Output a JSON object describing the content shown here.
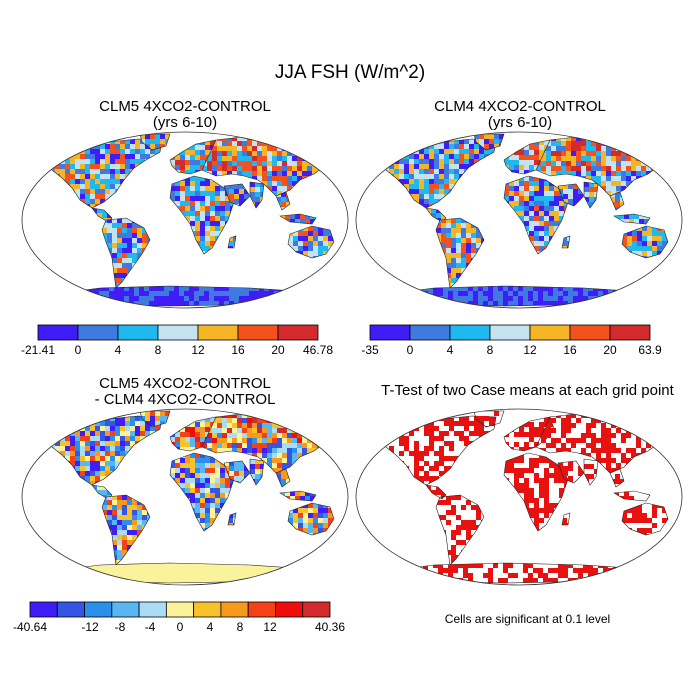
{
  "chart_data": [
    {
      "type": "heatmap",
      "panel": "clm5",
      "title_line1": "CLM5 4XCO2-CONTROL",
      "title_line2": "(yrs 6-10)",
      "colorbar": {
        "labels": [
          "-21.41",
          "0",
          "4",
          "8",
          "12",
          "16",
          "20",
          "46.78"
        ],
        "colors": [
          "#3f1df7",
          "#3f7ae0",
          "#1fb9f0",
          "#c4e3f2",
          "#f5b626",
          "#f3521c",
          "#d32b2b"
        ]
      },
      "value_range": [
        -21.41,
        46.78
      ]
    },
    {
      "type": "heatmap",
      "panel": "clm4",
      "title_line1": "CLM4 4XCO2-CONTROL",
      "title_line2": "(yrs 6-10)",
      "colorbar": {
        "labels": [
          "-35",
          "0",
          "4",
          "8",
          "12",
          "16",
          "20",
          "63.9"
        ],
        "colors": [
          "#3f1df7",
          "#3f7ae0",
          "#1fb9f0",
          "#c4e3f2",
          "#f5b626",
          "#f3521c",
          "#d32b2b"
        ]
      },
      "value_range": [
        -35,
        63.9
      ]
    },
    {
      "type": "heatmap",
      "panel": "difference",
      "title_line1": "CLM5 4XCO2-CONTROL",
      "title_line2": "- CLM4 4XCO2-CONTROL",
      "colorbar": {
        "labels": [
          "-40.64",
          "",
          "-12",
          "-8",
          "-4",
          "0",
          "4",
          "8",
          "12",
          "",
          "40.36"
        ],
        "colors": [
          "#3f1df7",
          "#3456e3",
          "#2b8fec",
          "#58b6f2",
          "#a9dcf5",
          "#fbf39b",
          "#f7c12c",
          "#f59a1c",
          "#f24216",
          "#f10c0c",
          "#d32b2b"
        ]
      },
      "value_range": [
        -40.64,
        40.36
      ]
    },
    {
      "type": "heatmap",
      "panel": "ttest",
      "title_line1": "T-Test of two Case means at each grid point",
      "note": "Cells are significant at 0.1 level",
      "colors": {
        "significant": "#e8110f"
      }
    }
  ],
  "main_title": "JJA FSH (W/m^2)"
}
